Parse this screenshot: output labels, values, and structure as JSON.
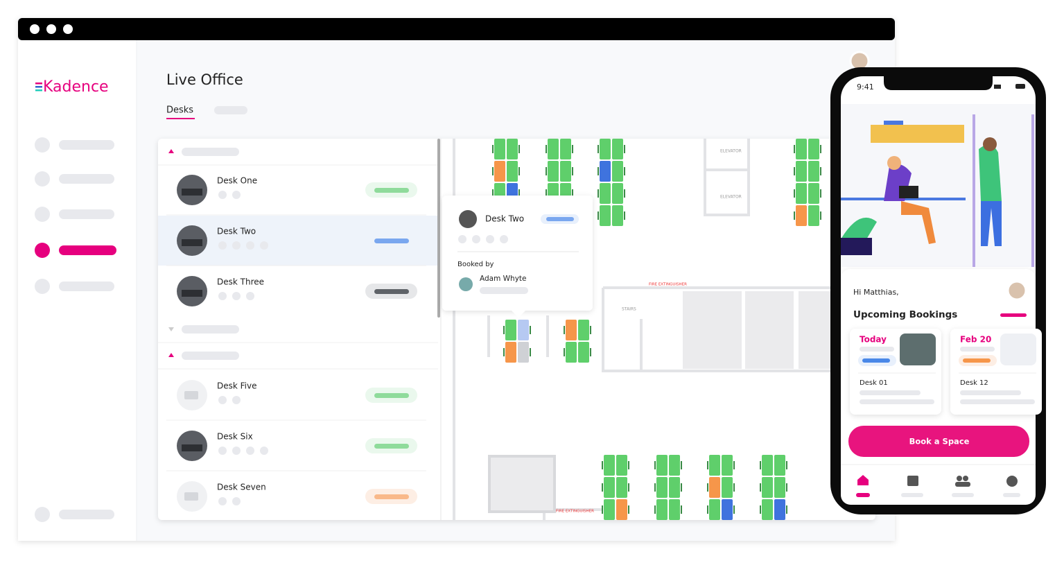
{
  "sidebar": {
    "logo": "Kadence"
  },
  "header": {
    "title": "Live Office",
    "tab": "Desks"
  },
  "desk_list": {
    "desks": [
      "Desk One",
      "Desk Two",
      "Desk Three",
      "Desk Five",
      "Desk Six",
      "Desk Seven"
    ]
  },
  "popup": {
    "desk": "Desk Two",
    "booked_by_label": "Booked by",
    "booked_by": "Adam Whyte"
  },
  "floor_map": {
    "labels": [
      "ELEVATOR",
      "ELEVATOR",
      "FIRE EXTINGUISHER",
      "STAIRS",
      "FIRE EXTINGUISHER"
    ]
  },
  "phone": {
    "time": "9:41",
    "greeting": "Hi Matthias,",
    "section_title": "Upcoming Bookings",
    "bookings": [
      {
        "date": "Today",
        "desk": "Desk 01"
      },
      {
        "date": "Feb 20",
        "desk": "Desk 12"
      }
    ],
    "button": "Book a Space"
  }
}
